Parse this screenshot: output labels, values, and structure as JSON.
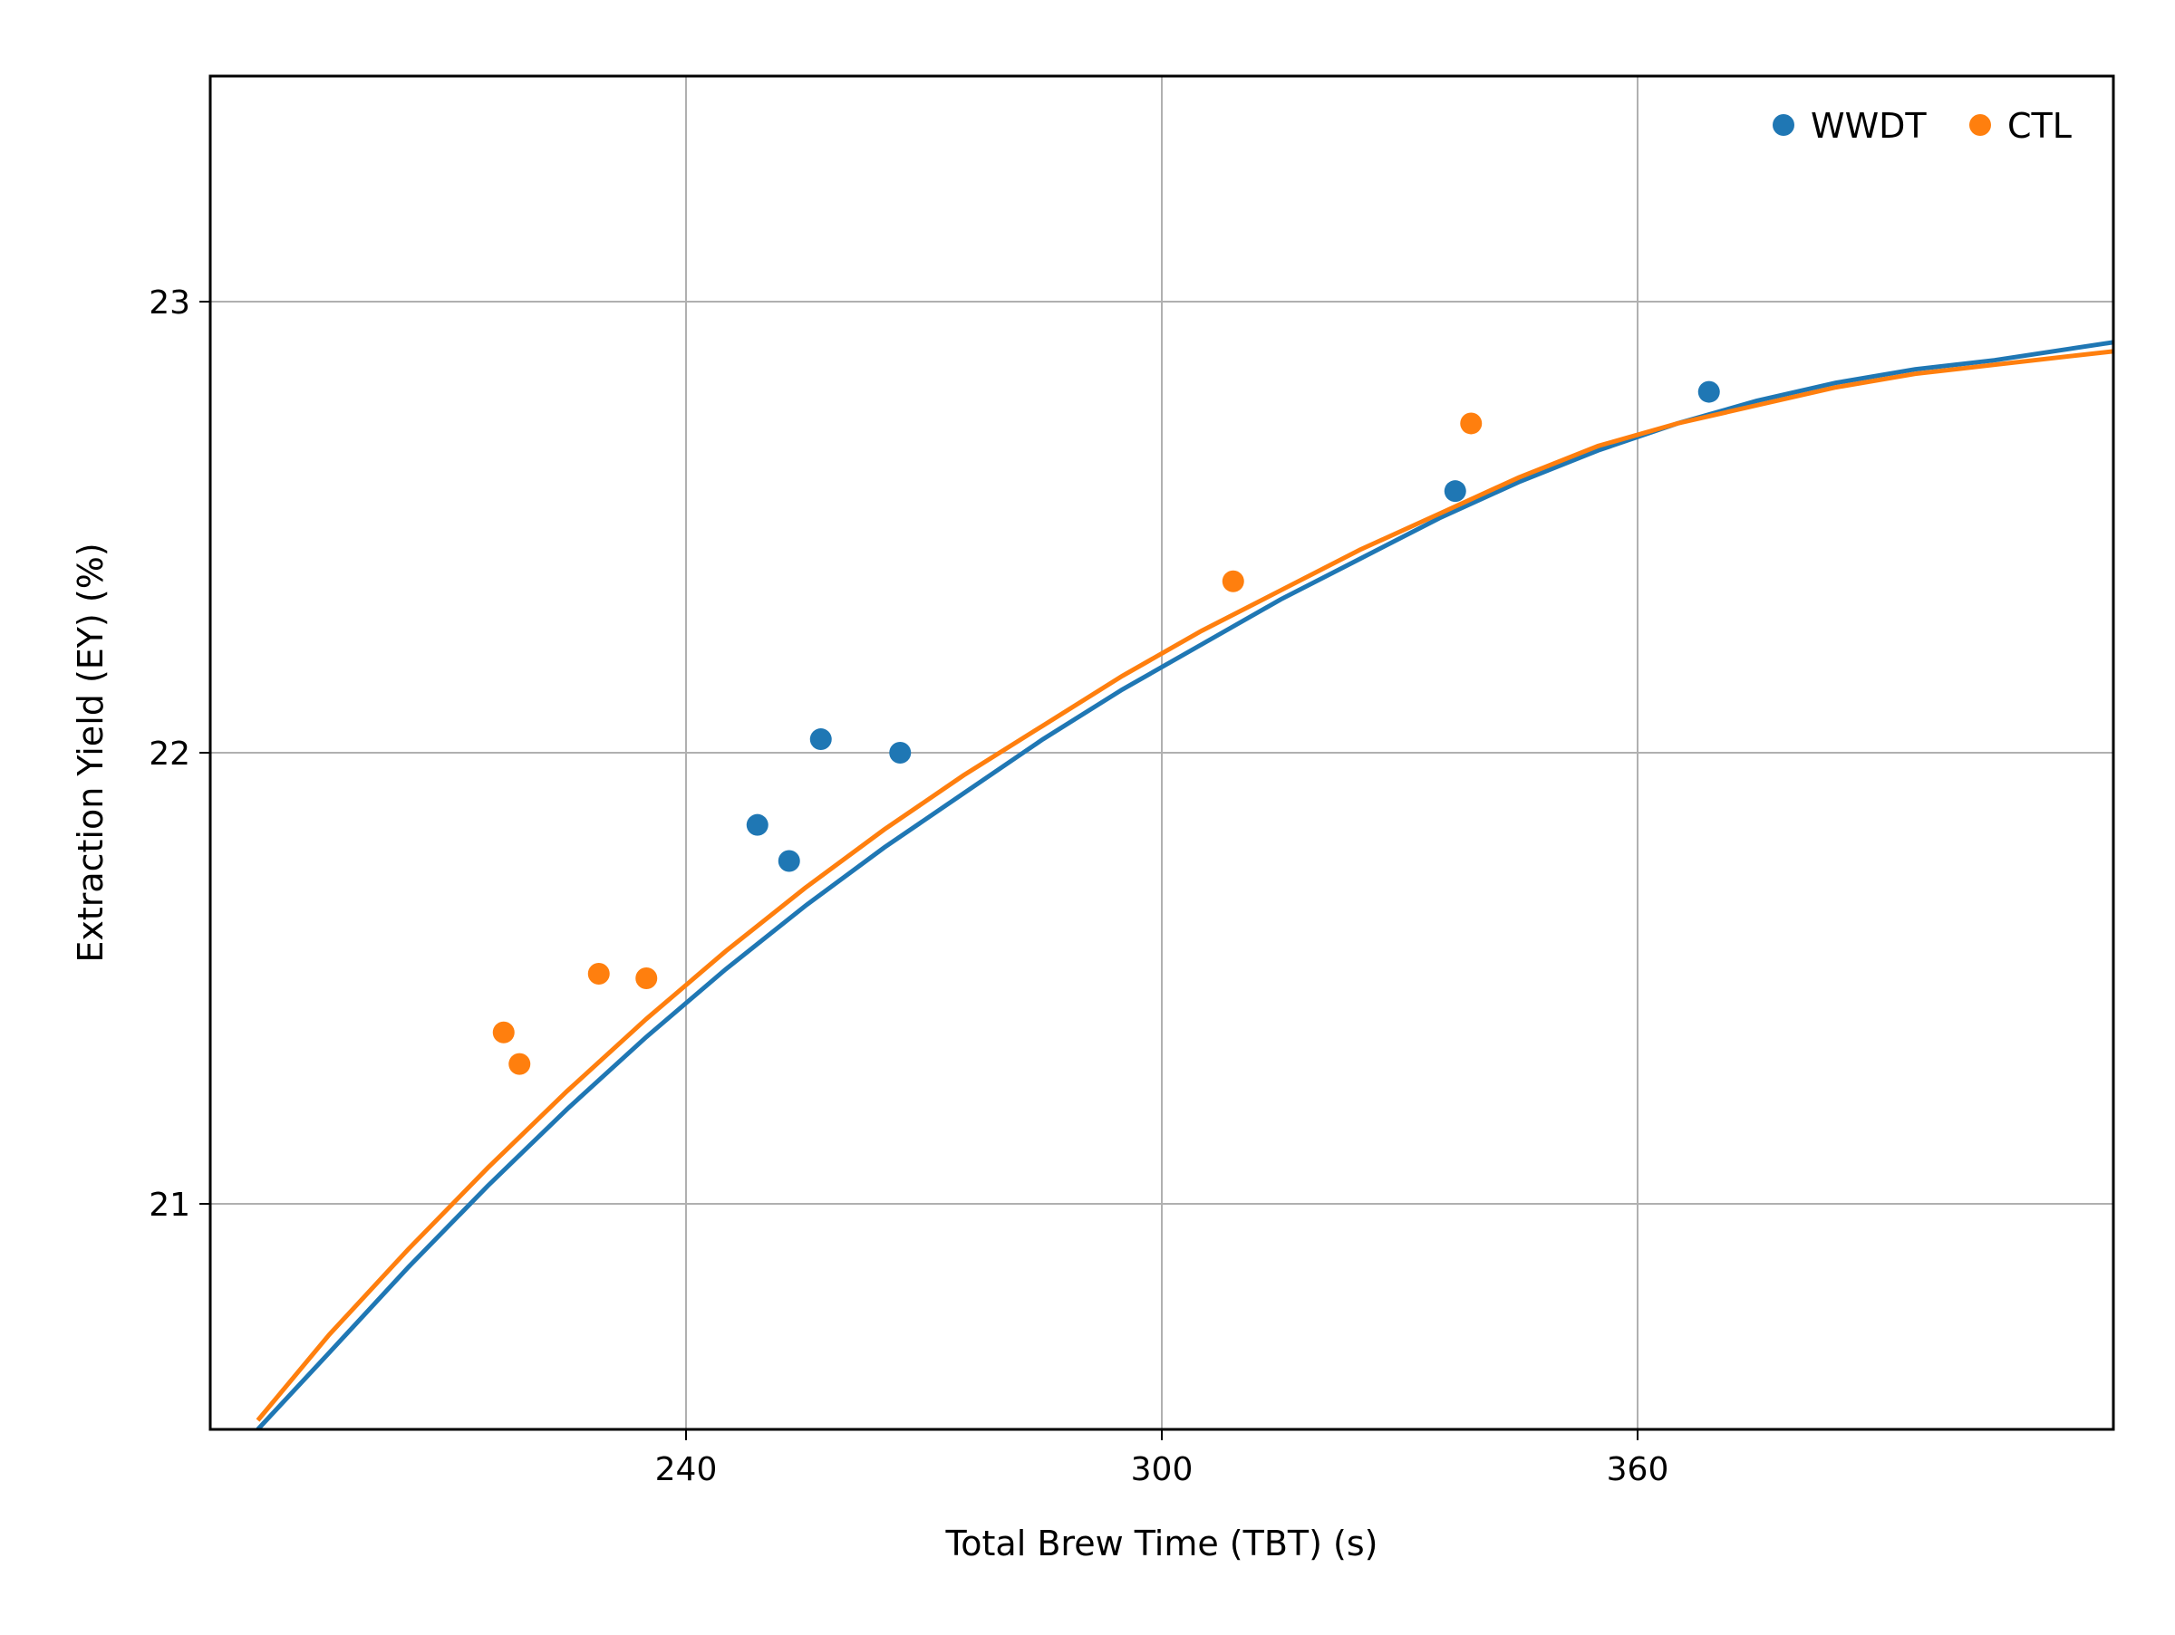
{
  "chart_data": {
    "type": "scatter",
    "title": "",
    "xlabel": "Total Brew Time (TBT) (s)",
    "ylabel": "Extraction Yield (EY) (%)",
    "xlim": [
      180,
      420
    ],
    "ylim": [
      20.5,
      23.5
    ],
    "xticks": [
      240,
      300,
      360
    ],
    "xtick_labels": [
      "240",
      "300",
      "360"
    ],
    "yticks": [
      21,
      22,
      23
    ],
    "ytick_labels": [
      "21",
      "22",
      "23"
    ],
    "grid": true,
    "legend": {
      "position": "top-right",
      "marker": "circle"
    },
    "series": [
      {
        "name": "WWDT",
        "color": "#1f77b4",
        "points": [
          {
            "x": 249,
            "y": 21.84
          },
          {
            "x": 253,
            "y": 21.76
          },
          {
            "x": 257,
            "y": 22.03
          },
          {
            "x": 267,
            "y": 22.0
          },
          {
            "x": 337,
            "y": 22.58
          },
          {
            "x": 369,
            "y": 22.8
          }
        ],
        "fit_curve": {
          "x": [
            186,
            195,
            205,
            215,
            225,
            235,
            245,
            255,
            265,
            275,
            285,
            295,
            305,
            315,
            325,
            335,
            345,
            355,
            365,
            375,
            385,
            395,
            405,
            420
          ],
          "y": [
            20.5,
            20.67,
            20.86,
            21.04,
            21.21,
            21.37,
            21.52,
            21.66,
            21.79,
            21.91,
            22.03,
            22.14,
            22.24,
            22.34,
            22.43,
            22.52,
            22.6,
            22.67,
            22.73,
            22.78,
            22.82,
            22.85,
            22.87,
            22.91
          ]
        }
      },
      {
        "name": "CTL",
        "color": "#ff7f0e",
        "points": [
          {
            "x": 217,
            "y": 21.38
          },
          {
            "x": 219,
            "y": 21.31
          },
          {
            "x": 229,
            "y": 21.51
          },
          {
            "x": 235,
            "y": 21.5
          },
          {
            "x": 309,
            "y": 22.38
          },
          {
            "x": 339,
            "y": 22.73
          }
        ],
        "fit_curve": {
          "x": [
            186,
            195,
            205,
            215,
            225,
            235,
            245,
            255,
            265,
            275,
            285,
            295,
            305,
            315,
            325,
            335,
            345,
            355,
            365,
            375,
            385,
            395,
            405,
            420
          ],
          "y": [
            20.52,
            20.71,
            20.9,
            21.08,
            21.25,
            21.41,
            21.56,
            21.7,
            21.83,
            21.95,
            22.06,
            22.17,
            22.27,
            22.36,
            22.45,
            22.53,
            22.61,
            22.68,
            22.73,
            22.77,
            22.81,
            22.84,
            22.86,
            22.89
          ]
        }
      }
    ]
  }
}
